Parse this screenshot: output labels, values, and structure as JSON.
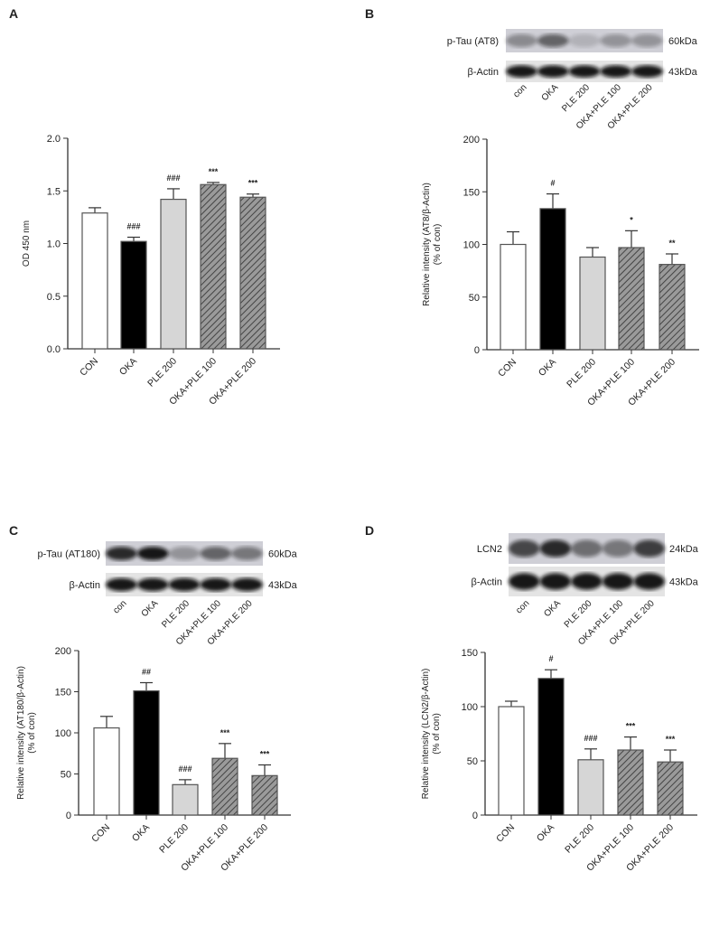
{
  "chart_data": [
    {
      "panel": "A",
      "type": "bar",
      "categories": [
        "CON",
        "OKA",
        "PLE 200",
        "OKA+PLE 100",
        "OKA+PLE 200"
      ],
      "values": [
        1.29,
        1.02,
        1.42,
        1.56,
        1.44
      ],
      "errors": [
        0.05,
        0.04,
        0.1,
        0.02,
        0.03
      ],
      "annotations": [
        "",
        "###",
        "###",
        "***",
        "***"
      ],
      "ylabel": "OD 450 nm",
      "ylim": [
        0,
        2.0
      ],
      "yticks": [
        "0.0",
        "0.5",
        "1.0",
        "1.5",
        "2.0"
      ],
      "fills": [
        "white",
        "black",
        "light-gray",
        "hatched",
        "hatched"
      ]
    },
    {
      "panel": "B",
      "type": "bar",
      "categories": [
        "CON",
        "OKA",
        "PLE 200",
        "OKA+PLE 100",
        "OKA+PLE 200"
      ],
      "values": [
        100,
        134,
        88,
        97,
        81
      ],
      "errors": [
        12,
        14,
        9,
        16,
        10
      ],
      "annotations": [
        "",
        "#",
        "",
        "*",
        "**"
      ],
      "ylabel": "Relative intensity (AT8/β-Actin)",
      "ylabel2": "(% of con)",
      "ylim": [
        0,
        200
      ],
      "yticks": [
        "0",
        "50",
        "100",
        "150",
        "200"
      ],
      "blot": {
        "rows": [
          {
            "label": "p-Tau (AT8)",
            "size": "60kDa"
          },
          {
            "label": "β-Actin",
            "size": "43kDa"
          }
        ],
        "lanes": [
          "con",
          "OKA",
          "PLE 200",
          "OKA+PLE 100",
          "OKA+PLE 200"
        ]
      }
    },
    {
      "panel": "C",
      "type": "bar",
      "categories": [
        "CON",
        "OKA",
        "PLE 200",
        "OKA+PLE 100",
        "OKA+PLE 200"
      ],
      "values": [
        106,
        151,
        37,
        69,
        48
      ],
      "errors": [
        14,
        10,
        6,
        18,
        13
      ],
      "annotations": [
        "",
        "##",
        "###",
        "***",
        "***"
      ],
      "ylabel": "Relative intensity (AT180/β-Actin)",
      "ylabel2": "(% of con)",
      "ylim": [
        0,
        200
      ],
      "yticks": [
        "0",
        "50",
        "100",
        "150",
        "200"
      ],
      "blot": {
        "rows": [
          {
            "label": "p-Tau (AT180)",
            "size": "60kDa"
          },
          {
            "label": "β-Actin",
            "size": "43kDa"
          }
        ],
        "lanes": [
          "con",
          "OKA",
          "PLE 200",
          "OKA+PLE 100",
          "OKA+PLE 200"
        ]
      }
    },
    {
      "panel": "D",
      "type": "bar",
      "categories": [
        "CON",
        "OKA",
        "PLE 200",
        "OKA+PLE 100",
        "OKA+PLE 200"
      ],
      "values": [
        100,
        126,
        51,
        60,
        49
      ],
      "errors": [
        5,
        8,
        10,
        12,
        11
      ],
      "annotations": [
        "",
        "#",
        "###",
        "***",
        "***"
      ],
      "ylabel": "Relative intensity (LCN2/β-Actin)",
      "ylabel2": "(% of con)",
      "ylim": [
        0,
        150
      ],
      "yticks": [
        "0",
        "50",
        "100",
        "150"
      ],
      "blot": {
        "rows": [
          {
            "label": "LCN2",
            "size": "24kDa"
          },
          {
            "label": "β-Actin",
            "size": "43kDa"
          }
        ],
        "lanes": [
          "con",
          "OKA",
          "PLE 200",
          "OKA+PLE 100",
          "OKA+PLE 200"
        ]
      }
    }
  ],
  "colors": {
    "white": "#ffffff",
    "black": "#000000",
    "light-gray": "#d6d6d6",
    "hatched": "#8a8a8a",
    "axis": "#333333"
  }
}
